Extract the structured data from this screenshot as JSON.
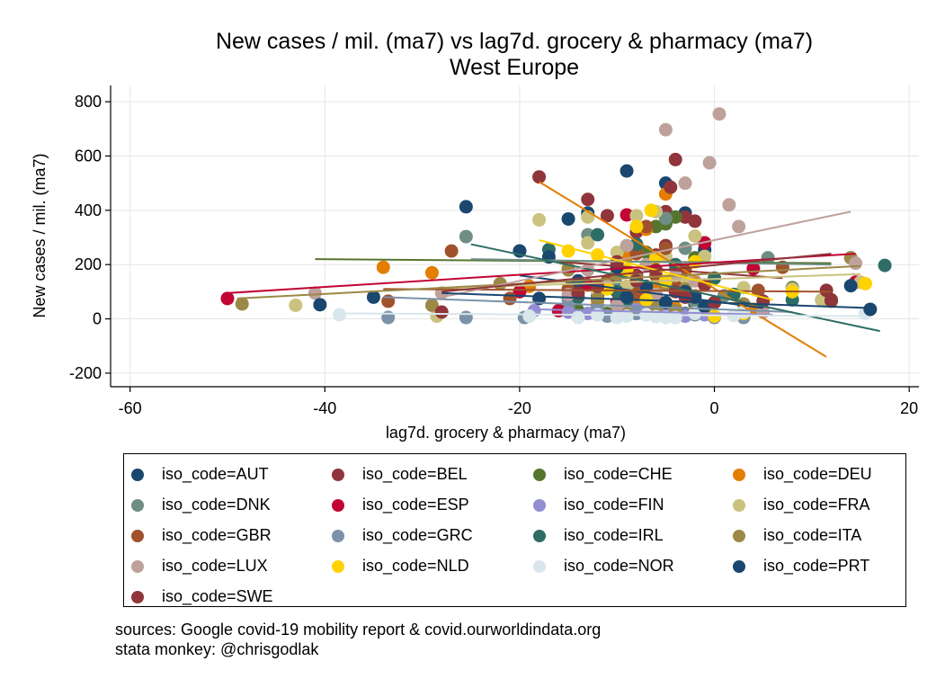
{
  "title": "New cases / mil. (ma7) vs lag7d. grocery & pharmacy (ma7)",
  "subtitle": "West Europe",
  "notes": [
    "sources: Google covid-19 mobility report & covid.ourworldindata.org",
    "stata monkey: @chrisgodlak"
  ],
  "chart_data": {
    "type": "scatter",
    "xlabel": "lag7d. grocery & pharmacy (ma7)",
    "ylabel": "New cases / mil. (ma7)",
    "xlim": [
      -62,
      21
    ],
    "ylim": [
      -250,
      860
    ],
    "xticks": [
      -60,
      -40,
      -20,
      0,
      20
    ],
    "yticks": [
      -200,
      0,
      200,
      400,
      600,
      800
    ],
    "grid": true,
    "legend_position": "bottom",
    "legend_columns": 4,
    "series": [
      {
        "name": "iso_code=AUT",
        "color": "#1a476f",
        "points": [
          [
            -9,
            545
          ],
          [
            -5,
            500
          ],
          [
            -3,
            390
          ],
          [
            -13,
            390
          ],
          [
            -15,
            368
          ],
          [
            -5,
            355
          ],
          [
            -1,
            255
          ],
          [
            -10,
            195
          ],
          [
            -4,
            145
          ],
          [
            -8,
            85
          ],
          [
            -2,
            55
          ],
          [
            -6,
            25
          ],
          [
            -12,
            85
          ],
          [
            -18,
            75
          ],
          [
            -3,
            20
          ],
          [
            -10,
            35
          ]
        ],
        "fit": [
          [
            -20,
            160
          ],
          [
            5,
            40
          ]
        ]
      },
      {
        "name": "iso_code=BEL",
        "color": "#90353b",
        "points": [
          [
            -18,
            523
          ],
          [
            -13,
            440
          ],
          [
            -4,
            587
          ],
          [
            -5,
            395
          ],
          [
            -3,
            375
          ],
          [
            -8,
            320
          ],
          [
            -11,
            380
          ],
          [
            -5,
            270
          ],
          [
            -6,
            235
          ],
          [
            -8,
            160
          ],
          [
            -10,
            100
          ],
          [
            -3,
            140
          ],
          [
            -7,
            60
          ],
          [
            -14,
            125
          ]
        ],
        "fit": [
          [
            -16,
            210
          ],
          [
            7,
            150
          ]
        ]
      },
      {
        "name": "iso_code=CHE",
        "color": "#55752f",
        "points": [
          [
            -4,
            375
          ],
          [
            -5,
            350
          ],
          [
            -6,
            340
          ],
          [
            -7,
            245
          ],
          [
            -2,
            225
          ],
          [
            -10,
            185
          ],
          [
            -3,
            155
          ],
          [
            -8,
            75
          ],
          [
            -12,
            45
          ],
          [
            -4,
            110
          ],
          [
            8,
            115
          ],
          [
            -14,
            30
          ],
          [
            -11,
            20
          ]
        ],
        "fit": [
          [
            -41,
            220
          ],
          [
            12,
            205
          ]
        ]
      },
      {
        "name": "iso_code=DEU",
        "color": "#e37e00",
        "points": [
          [
            -5,
            460
          ],
          [
            -7,
            330
          ],
          [
            -9,
            230
          ],
          [
            -10,
            170
          ],
          [
            -15,
            185
          ],
          [
            -6,
            120
          ],
          [
            -8,
            70
          ],
          [
            -4,
            40
          ],
          [
            -2,
            30
          ],
          [
            -12,
            65
          ],
          [
            -19,
            120
          ],
          [
            -29,
            170
          ],
          [
            -34,
            190
          ],
          [
            4,
            35
          ],
          [
            -7,
            20
          ]
        ],
        "fit": [
          [
            -18,
            505
          ],
          [
            11.5,
            -140
          ]
        ]
      },
      {
        "name": "iso_code=DNK",
        "color": "#6e8e84",
        "points": [
          [
            -25.5,
            303
          ],
          [
            5.5,
            225
          ],
          [
            -13,
            310
          ],
          [
            -5,
            370
          ],
          [
            -3,
            260
          ],
          [
            -10,
            125
          ],
          [
            -8,
            95
          ],
          [
            -2,
            65
          ],
          [
            -15,
            45
          ],
          [
            -6,
            30
          ],
          [
            1,
            85
          ]
        ],
        "fit": [
          [
            -25,
            220
          ],
          [
            12,
            200
          ]
        ]
      },
      {
        "name": "iso_code=ESP",
        "color": "#c10534",
        "points": [
          [
            -50,
            75
          ],
          [
            -9,
            383
          ],
          [
            -1,
            280
          ],
          [
            4,
            185
          ],
          [
            -3,
            150
          ],
          [
            -13,
            125
          ],
          [
            -7,
            80
          ],
          [
            -16,
            30
          ],
          [
            -20,
            100
          ],
          [
            -6,
            10
          ],
          [
            14.5,
            135
          ],
          [
            -10,
            60
          ]
        ],
        "fit": [
          [
            -50,
            95
          ],
          [
            14.5,
            240
          ]
        ]
      },
      {
        "name": "iso_code=FIN",
        "color": "#938dd2",
        "points": [
          [
            -18.5,
            30
          ],
          [
            -15,
            25
          ],
          [
            -13,
            20
          ],
          [
            -10,
            15
          ],
          [
            -7,
            25
          ],
          [
            -5,
            20
          ],
          [
            -3,
            10
          ],
          [
            -1,
            15
          ],
          [
            -8,
            35
          ],
          [
            -12,
            30
          ]
        ],
        "fit": [
          [
            -18,
            35
          ],
          [
            6,
            15
          ]
        ]
      },
      {
        "name": "iso_code=FRA",
        "color": "#cac27e",
        "points": [
          [
            -18,
            365
          ],
          [
            -13,
            375
          ],
          [
            -8,
            380
          ],
          [
            -6,
            395
          ],
          [
            -2,
            305
          ],
          [
            -1,
            230
          ],
          [
            -13,
            280
          ],
          [
            -10,
            245
          ],
          [
            -5,
            230
          ],
          [
            -4,
            185
          ],
          [
            -3,
            140
          ],
          [
            -9,
            120
          ],
          [
            3,
            115
          ],
          [
            -12,
            100
          ],
          [
            -43,
            50
          ],
          [
            -28.5,
            10
          ],
          [
            15,
            135
          ],
          [
            14,
            225
          ],
          [
            8,
            110
          ],
          [
            11,
            70
          ]
        ],
        "fit": [
          [
            -30,
            110
          ],
          [
            15,
            165
          ]
        ]
      },
      {
        "name": "iso_code=GBR",
        "color": "#a0522d",
        "points": [
          [
            -27,
            250
          ],
          [
            -33.5,
            65
          ],
          [
            -21,
            75
          ],
          [
            -7,
            340
          ],
          [
            -5,
            260
          ],
          [
            -8,
            240
          ],
          [
            -2,
            210
          ],
          [
            -3,
            180
          ],
          [
            -10,
            200
          ],
          [
            -6,
            160
          ],
          [
            -4,
            120
          ],
          [
            -11,
            140
          ],
          [
            4.5,
            105
          ],
          [
            7,
            190
          ],
          [
            12,
            65
          ],
          [
            -15,
            110
          ],
          [
            -8,
            90
          ]
        ],
        "fit": [
          [
            -34,
            110
          ],
          [
            12,
            100
          ]
        ]
      },
      {
        "name": "iso_code=GRC",
        "color": "#7b92a8",
        "points": [
          [
            -33.5,
            5
          ],
          [
            -25.5,
            5
          ],
          [
            -19.5,
            5
          ],
          [
            -14,
            80
          ],
          [
            -11,
            10
          ],
          [
            -8,
            20
          ],
          [
            -6,
            15
          ],
          [
            -4,
            25
          ],
          [
            -2,
            15
          ],
          [
            0,
            5
          ],
          [
            3,
            5
          ],
          [
            -15,
            70
          ],
          [
            -12,
            40
          ]
        ],
        "fit": [
          [
            -34,
            80
          ],
          [
            8,
            25
          ]
        ]
      },
      {
        "name": "iso_code=IRL",
        "color": "#2d6d66",
        "points": [
          [
            17.5,
            197
          ],
          [
            -20,
            250
          ],
          [
            -17,
            255
          ],
          [
            -12,
            310
          ],
          [
            -8,
            275
          ],
          [
            -4,
            200
          ],
          [
            0,
            150
          ],
          [
            -10,
            100
          ],
          [
            -6,
            90
          ],
          [
            2,
            90
          ],
          [
            8,
            70
          ],
          [
            -14,
            80
          ],
          [
            -9,
            70
          ]
        ],
        "fit": [
          [
            -25,
            275
          ],
          [
            17,
            -45
          ]
        ]
      },
      {
        "name": "iso_code=ITA",
        "color": "#9c8847",
        "points": [
          [
            -48.5,
            55
          ],
          [
            -29,
            50
          ],
          [
            -22,
            130
          ],
          [
            -15,
            180
          ],
          [
            -10,
            165
          ],
          [
            -8,
            150
          ],
          [
            -5,
            130
          ],
          [
            -3,
            110
          ],
          [
            -2,
            85
          ],
          [
            -12,
            75
          ],
          [
            0,
            60
          ],
          [
            3,
            55
          ],
          [
            -6,
            40
          ],
          [
            -4,
            30
          ],
          [
            -9,
            20
          ],
          [
            14,
            225
          ]
        ],
        "fit": [
          [
            -49,
            75
          ],
          [
            15,
            195
          ]
        ]
      },
      {
        "name": "iso_code=LUX",
        "color": "#bfa19c",
        "points": [
          [
            0.5,
            755
          ],
          [
            -5,
            697
          ],
          [
            -0.5,
            575
          ],
          [
            -3,
            500
          ],
          [
            1.5,
            420
          ],
          [
            2.5,
            340
          ],
          [
            -9,
            270
          ],
          [
            -7,
            200
          ],
          [
            -4,
            160
          ],
          [
            -2,
            140
          ],
          [
            -11,
            120
          ],
          [
            -6,
            90
          ],
          [
            14.5,
            205
          ],
          [
            -41,
            95
          ],
          [
            -28,
            95
          ],
          [
            -15,
            90
          ],
          [
            -5,
            60
          ],
          [
            -10,
            50
          ],
          [
            -1,
            40
          ],
          [
            5,
            25
          ],
          [
            -13,
            180
          ]
        ],
        "fit": [
          [
            -28,
            80
          ],
          [
            14,
            395
          ]
        ]
      },
      {
        "name": "iso_code=NLD",
        "color": "#ffd200",
        "points": [
          [
            -6.5,
            400
          ],
          [
            -8,
            340
          ],
          [
            -12,
            235
          ],
          [
            -15,
            250
          ],
          [
            -6,
            225
          ],
          [
            -2,
            210
          ],
          [
            -9,
            180
          ],
          [
            -5,
            140
          ],
          [
            -11,
            110
          ],
          [
            -3,
            90
          ],
          [
            -7,
            70
          ],
          [
            -1,
            40
          ],
          [
            0,
            10
          ],
          [
            -4,
            5
          ],
          [
            3,
            20
          ],
          [
            8,
            100
          ],
          [
            15.5,
            130
          ]
        ],
        "fit": [
          [
            -18,
            290
          ],
          [
            6,
            70
          ]
        ]
      },
      {
        "name": "iso_code=NOR",
        "color": "#d9e6eb",
        "points": [
          [
            -38.5,
            15
          ],
          [
            -19,
            10
          ],
          [
            -14,
            5
          ],
          [
            -9,
            10
          ],
          [
            -7,
            15
          ],
          [
            -4,
            5
          ],
          [
            -6,
            8
          ],
          [
            -2,
            20
          ],
          [
            2,
            12
          ],
          [
            -12,
            15
          ],
          [
            -5,
            5
          ],
          [
            15.5,
            20
          ],
          [
            -10,
            5
          ],
          [
            3,
            25
          ]
        ],
        "fit": [
          [
            -38,
            20
          ],
          [
            15,
            10
          ]
        ]
      },
      {
        "name": "iso_code=PRT",
        "color": "#1a476f",
        "points": [
          [
            -25.5,
            413
          ],
          [
            -40.5,
            52
          ],
          [
            -35,
            80
          ],
          [
            -20,
            250
          ],
          [
            -17,
            228
          ],
          [
            -10,
            190
          ],
          [
            -14,
            140
          ],
          [
            -7,
            120
          ],
          [
            -3,
            100
          ],
          [
            -9,
            80
          ],
          [
            -5,
            60
          ],
          [
            -1,
            45
          ],
          [
            14,
            122
          ],
          [
            16,
            35
          ],
          [
            -2,
            80
          ]
        ],
        "fit": [
          [
            -28,
            95
          ],
          [
            16,
            40
          ]
        ]
      },
      {
        "name": "iso_code=SWE",
        "color": "#90353b",
        "points": [
          [
            -4.5,
            485
          ],
          [
            -2,
            360
          ],
          [
            -10,
            210
          ],
          [
            -6,
            180
          ],
          [
            -8,
            140
          ],
          [
            -12,
            120
          ],
          [
            -4,
            100
          ],
          [
            -3,
            80
          ],
          [
            -14,
            95
          ],
          [
            0,
            60
          ],
          [
            5,
            65
          ],
          [
            11.5,
            105
          ],
          [
            12,
            70
          ],
          [
            -28,
            25
          ],
          [
            -1,
            125
          ]
        ],
        "fit": [
          [
            -28,
            100
          ],
          [
            12,
            240
          ]
        ]
      }
    ]
  }
}
